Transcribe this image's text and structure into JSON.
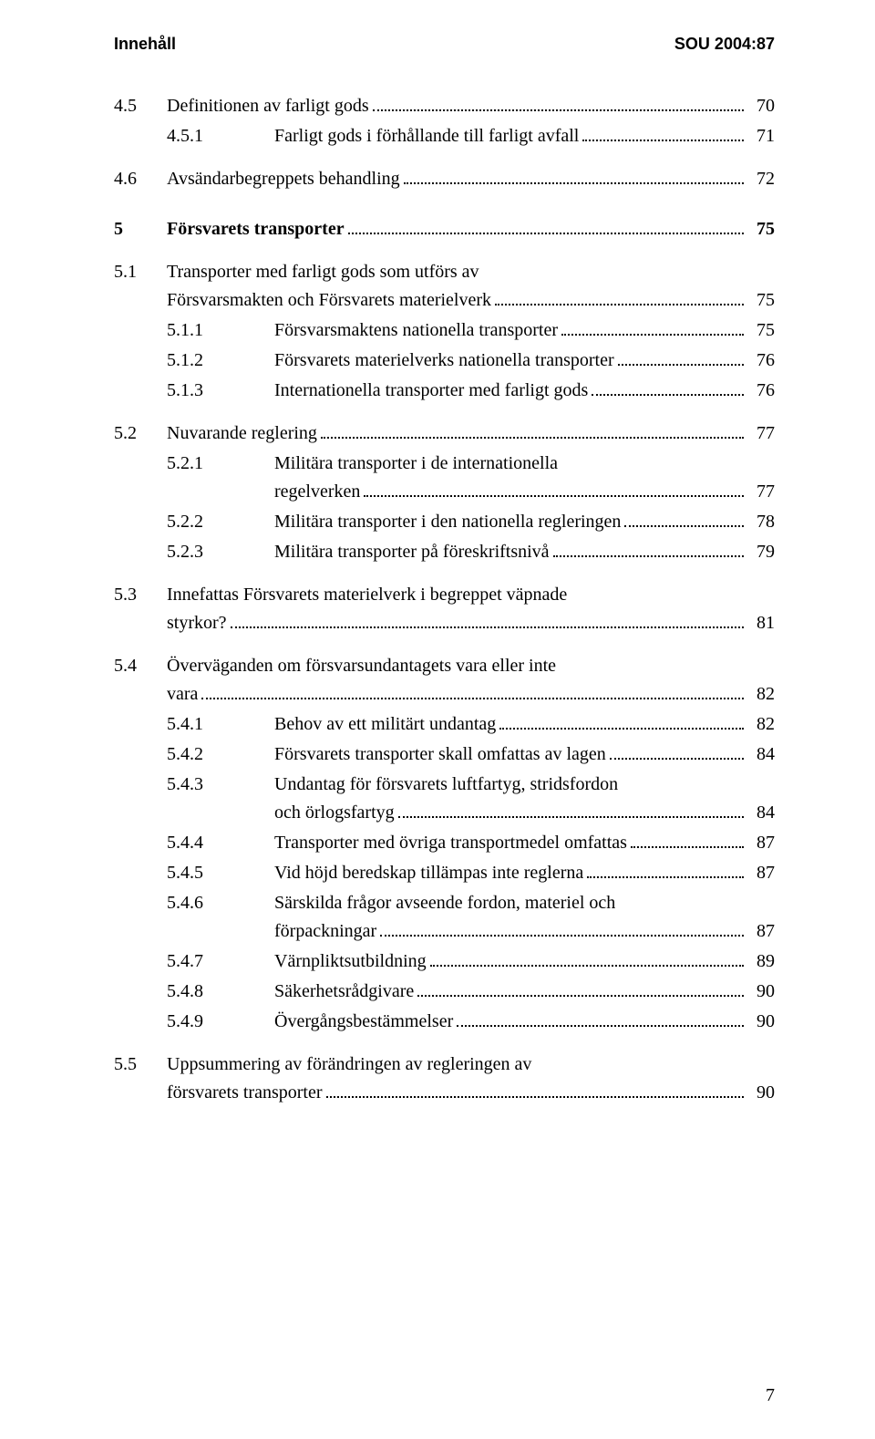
{
  "header": {
    "left": "Innehåll",
    "right": "SOU 2004:87"
  },
  "footer_page": "7",
  "toc": [
    {
      "level": 1,
      "num": "4.5",
      "lines": [
        "Definitionen av farligt gods"
      ],
      "page": "70",
      "gap": "m"
    },
    {
      "level": 2,
      "num": "4.5.1",
      "lines": [
        "Farligt gods i förhållande till farligt avfall"
      ],
      "page": "71"
    },
    {
      "level": 1,
      "num": "4.6",
      "lines": [
        "Avsändarbegreppets behandling"
      ],
      "page": "72",
      "gap": "m"
    },
    {
      "level": 1,
      "num": "5",
      "lines": [
        "Försvarets transporter"
      ],
      "page": "75",
      "chapter": true,
      "gap": "l"
    },
    {
      "level": 1,
      "num": "5.1",
      "lines": [
        "Transporter med farligt gods som utförs av",
        "Försvarsmakten och Försvarets materielverk"
      ],
      "page": "75",
      "gap": "m"
    },
    {
      "level": 2,
      "num": "5.1.1",
      "lines": [
        "Försvarsmaktens nationella transporter"
      ],
      "page": "75"
    },
    {
      "level": 2,
      "num": "5.1.2",
      "lines": [
        "Försvarets materielverks nationella transporter"
      ],
      "page": "76"
    },
    {
      "level": 2,
      "num": "5.1.3",
      "lines": [
        "Internationella transporter med farligt gods"
      ],
      "page": "76"
    },
    {
      "level": 1,
      "num": "5.2",
      "lines": [
        "Nuvarande reglering"
      ],
      "page": "77",
      "gap": "m"
    },
    {
      "level": 2,
      "num": "5.2.1",
      "lines": [
        "Militära transporter i de internationella",
        "regelverken"
      ],
      "page": "77"
    },
    {
      "level": 2,
      "num": "5.2.2",
      "lines": [
        "Militära transporter i den nationella regleringen"
      ],
      "page": "78"
    },
    {
      "level": 2,
      "num": "5.2.3",
      "lines": [
        "Militära transporter på föreskriftsnivå"
      ],
      "page": "79"
    },
    {
      "level": 1,
      "num": "5.3",
      "lines": [
        "Innefattas Försvarets materielverk i begreppet väpnade",
        "styrkor?"
      ],
      "page": "81",
      "gap": "m"
    },
    {
      "level": 1,
      "num": "5.4",
      "lines": [
        "Överväganden om försvarsundantagets vara eller inte",
        "vara"
      ],
      "page": "82",
      "gap": "m"
    },
    {
      "level": 2,
      "num": "5.4.1",
      "lines": [
        "Behov av ett militärt undantag"
      ],
      "page": "82"
    },
    {
      "level": 2,
      "num": "5.4.2",
      "lines": [
        "Försvarets transporter skall omfattas av lagen"
      ],
      "page": "84"
    },
    {
      "level": 2,
      "num": "5.4.3",
      "lines": [
        "Undantag för försvarets luftfartyg, stridsfordon",
        "och örlogsfartyg"
      ],
      "page": "84"
    },
    {
      "level": 2,
      "num": "5.4.4",
      "lines": [
        "Transporter med övriga transportmedel omfattas"
      ],
      "page": "87"
    },
    {
      "level": 2,
      "num": "5.4.5",
      "lines": [
        "Vid höjd beredskap tillämpas inte reglerna"
      ],
      "page": "87"
    },
    {
      "level": 2,
      "num": "5.4.6",
      "lines": [
        "Särskilda frågor avseende fordon, materiel och",
        "förpackningar"
      ],
      "page": "87"
    },
    {
      "level": 2,
      "num": "5.4.7",
      "lines": [
        "Värnpliktsutbildning"
      ],
      "page": "89"
    },
    {
      "level": 2,
      "num": "5.4.8",
      "lines": [
        "Säkerhetsrådgivare"
      ],
      "page": "90"
    },
    {
      "level": 2,
      "num": "5.4.9",
      "lines": [
        "Övergångsbestämmelser"
      ],
      "page": "90"
    },
    {
      "level": 1,
      "num": "5.5",
      "lines": [
        "Uppsummering av förändringen av regleringen av",
        "försvarets transporter"
      ],
      "page": "90",
      "gap": "m"
    }
  ]
}
